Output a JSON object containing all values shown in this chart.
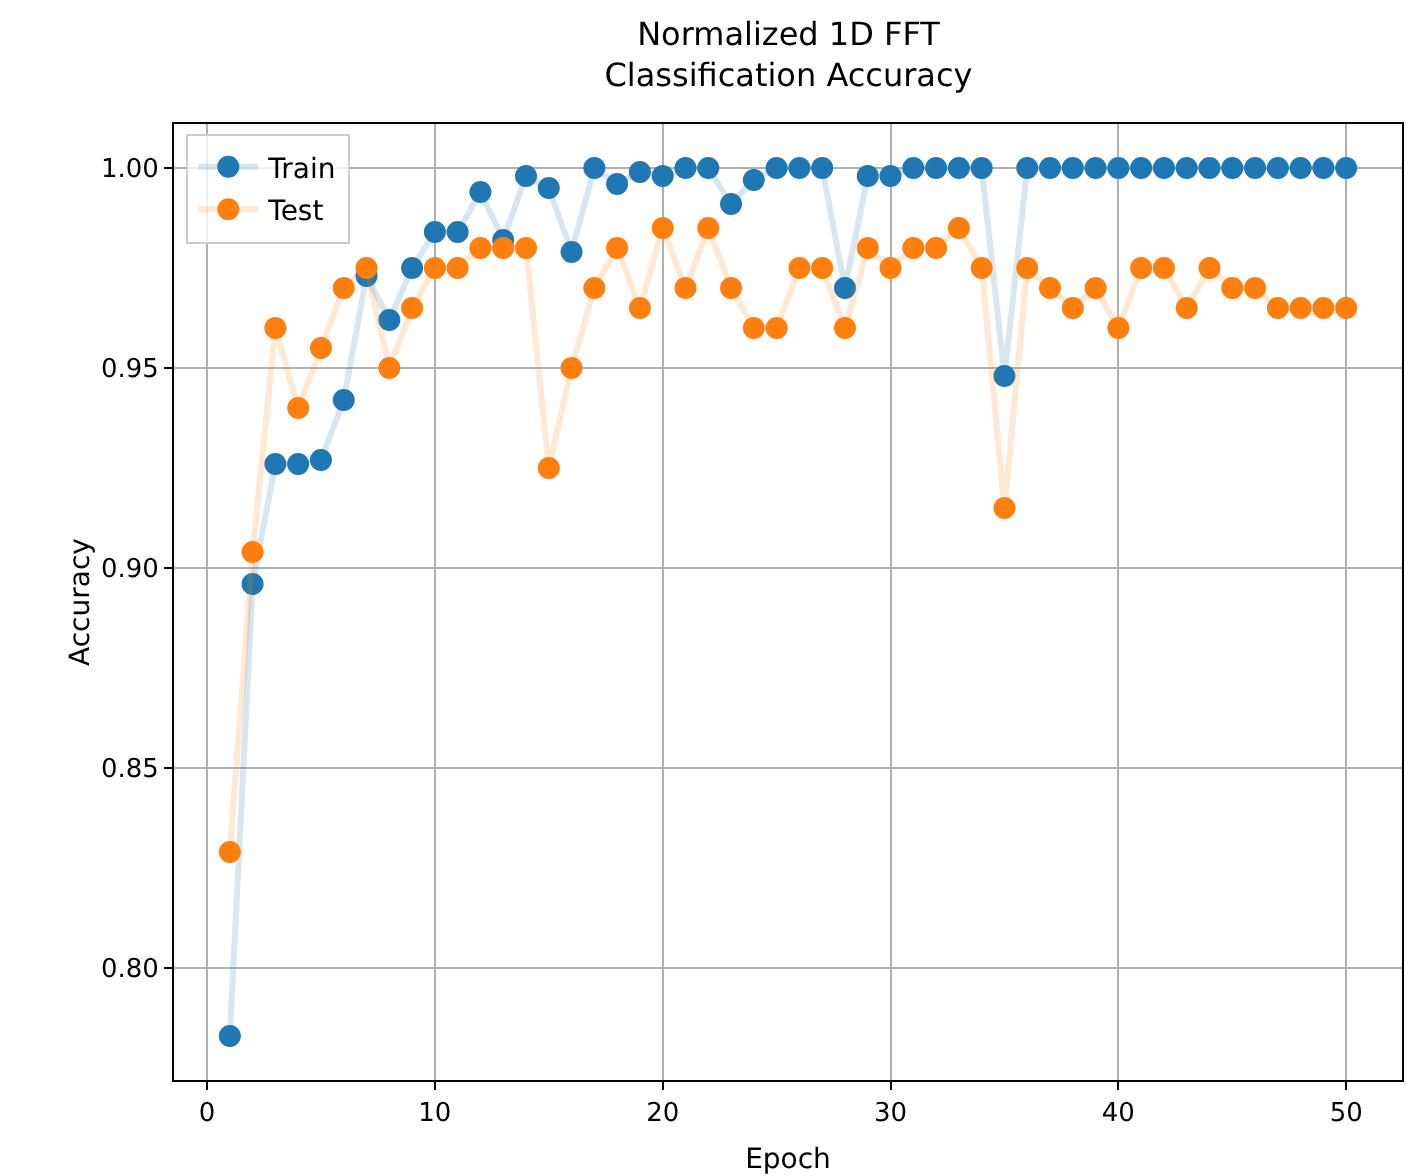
{
  "chart_data": {
    "type": "line",
    "title": "Normalized 1D FFT\nClassification Accuracy",
    "xlabel": "Epoch",
    "ylabel": "Accuracy",
    "x": [
      1,
      2,
      3,
      4,
      5,
      6,
      7,
      8,
      9,
      10,
      11,
      12,
      13,
      14,
      15,
      16,
      17,
      18,
      19,
      20,
      21,
      22,
      23,
      24,
      25,
      26,
      27,
      28,
      29,
      30,
      31,
      32,
      33,
      34,
      35,
      36,
      37,
      38,
      39,
      40,
      41,
      42,
      43,
      44,
      45,
      46,
      47,
      48,
      49,
      50
    ],
    "series": [
      {
        "name": "Train",
        "color": "#1f77b4",
        "values": [
          0.783,
          0.896,
          0.926,
          0.926,
          0.927,
          0.942,
          0.973,
          0.962,
          0.975,
          0.984,
          0.984,
          0.994,
          0.982,
          0.998,
          0.995,
          0.979,
          1.0,
          0.996,
          0.999,
          0.998,
          1.0,
          1.0,
          0.991,
          0.997,
          1.0,
          1.0,
          1.0,
          0.97,
          0.998,
          0.998,
          1.0,
          1.0,
          1.0,
          1.0,
          0.948,
          1.0,
          1.0,
          1.0,
          1.0,
          1.0,
          1.0,
          1.0,
          1.0,
          1.0,
          1.0,
          1.0,
          1.0,
          1.0,
          1.0,
          1.0
        ]
      },
      {
        "name": "Test",
        "color": "#ff7f0e",
        "values": [
          0.829,
          0.904,
          0.96,
          0.94,
          0.955,
          0.97,
          0.975,
          0.95,
          0.965,
          0.975,
          0.975,
          0.98,
          0.98,
          0.98,
          0.925,
          0.95,
          0.97,
          0.98,
          0.965,
          0.985,
          0.97,
          0.985,
          0.97,
          0.96,
          0.96,
          0.975,
          0.975,
          0.96,
          0.98,
          0.975,
          0.98,
          0.98,
          0.985,
          0.975,
          0.915,
          0.975,
          0.97,
          0.965,
          0.97,
          0.96,
          0.975,
          0.975,
          0.965,
          0.975,
          0.97,
          0.97,
          0.965,
          0.965,
          0.965,
          0.965
        ]
      }
    ],
    "xlim": [
      -1.45,
      52.45
    ],
    "xticks": [
      0,
      10,
      20,
      30,
      40,
      50
    ],
    "ylim": [
      0.772,
      1.011
    ],
    "yticks": [
      {
        "value": 0.8,
        "label": "0.80"
      },
      {
        "value": 0.85,
        "label": "0.85"
      },
      {
        "value": 0.9,
        "label": "0.90"
      },
      {
        "value": 0.95,
        "label": "0.95"
      },
      {
        "value": 1.0,
        "label": "1.00"
      }
    ],
    "grid": true,
    "legend": "top left",
    "marker": "circle",
    "line_style": "solid"
  }
}
